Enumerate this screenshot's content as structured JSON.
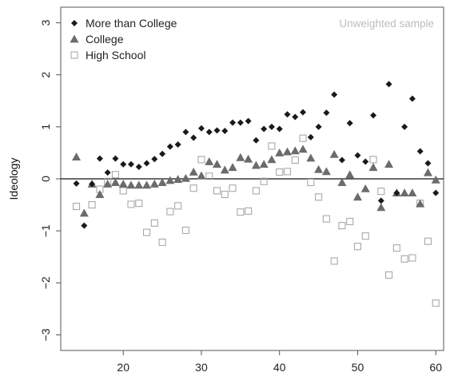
{
  "chart_data": {
    "type": "scatter",
    "ylabel": "Ideology",
    "xlabel": "",
    "xlim": [
      12,
      61
    ],
    "ylim": [
      -3.3,
      3.3
    ],
    "xticks": [
      20,
      30,
      40,
      50,
      60
    ],
    "yticks": [
      -3,
      -2,
      -1,
      0,
      1,
      2,
      3
    ],
    "reference_line_y": 0,
    "annotation": "Unweighted sample",
    "legend_position": "top-left",
    "series": [
      {
        "name": "More than College",
        "marker": "diamond",
        "color": "#1a1a1a",
        "points": [
          [
            14,
            -0.09
          ],
          [
            15,
            -0.9
          ],
          [
            16,
            -0.1
          ],
          [
            17,
            0.39
          ],
          [
            18,
            0.12
          ],
          [
            19,
            0.39
          ],
          [
            20,
            0.28
          ],
          [
            21,
            0.28
          ],
          [
            22,
            0.23
          ],
          [
            23,
            0.3
          ],
          [
            24,
            0.38
          ],
          [
            25,
            0.48
          ],
          [
            26,
            0.62
          ],
          [
            27,
            0.66
          ],
          [
            28,
            0.9
          ],
          [
            29,
            0.79
          ],
          [
            30,
            0.97
          ],
          [
            31,
            0.9
          ],
          [
            32,
            0.93
          ],
          [
            33,
            0.92
          ],
          [
            34,
            1.08
          ],
          [
            35,
            1.08
          ],
          [
            36,
            1.11
          ],
          [
            37,
            0.74
          ],
          [
            38,
            0.96
          ],
          [
            39,
            1.0
          ],
          [
            40,
            0.96
          ],
          [
            41,
            1.24
          ],
          [
            42,
            1.19
          ],
          [
            43,
            1.28
          ],
          [
            44,
            0.8
          ],
          [
            45,
            1.0
          ],
          [
            46,
            1.27
          ],
          [
            47,
            1.62
          ],
          [
            48,
            0.36
          ],
          [
            49,
            1.07
          ],
          [
            50,
            0.45
          ],
          [
            51,
            0.33
          ],
          [
            52,
            1.22
          ],
          [
            53,
            -0.42
          ],
          [
            54,
            1.82
          ],
          [
            55,
            -0.27
          ],
          [
            56,
            1.0
          ],
          [
            57,
            1.54
          ],
          [
            58,
            0.53
          ],
          [
            59,
            0.3
          ],
          [
            60,
            -0.27
          ]
        ]
      },
      {
        "name": "College",
        "marker": "triangle",
        "color": "#6b6b6b",
        "points": [
          [
            14,
            0.42
          ],
          [
            15,
            -0.66
          ],
          [
            16,
            -0.1
          ],
          [
            17,
            -0.3
          ],
          [
            18,
            -0.1
          ],
          [
            19,
            -0.07
          ],
          [
            20,
            -0.1
          ],
          [
            21,
            -0.12
          ],
          [
            22,
            -0.12
          ],
          [
            23,
            -0.12
          ],
          [
            24,
            -0.1
          ],
          [
            25,
            -0.07
          ],
          [
            26,
            -0.03
          ],
          [
            27,
            -0.01
          ],
          [
            28,
            0.01
          ],
          [
            29,
            0.13
          ],
          [
            30,
            0.06
          ],
          [
            31,
            0.33
          ],
          [
            32,
            0.28
          ],
          [
            33,
            0.17
          ],
          [
            34,
            0.22
          ],
          [
            35,
            0.41
          ],
          [
            36,
            0.38
          ],
          [
            37,
            0.26
          ],
          [
            38,
            0.28
          ],
          [
            39,
            0.37
          ],
          [
            40,
            0.5
          ],
          [
            41,
            0.52
          ],
          [
            42,
            0.54
          ],
          [
            43,
            0.57
          ],
          [
            44,
            0.4
          ],
          [
            45,
            0.18
          ],
          [
            46,
            0.14
          ],
          [
            47,
            0.47
          ],
          [
            48,
            -0.07
          ],
          [
            49,
            0.08
          ],
          [
            50,
            -0.35
          ],
          [
            51,
            -0.19
          ],
          [
            52,
            0.22
          ],
          [
            53,
            -0.55
          ],
          [
            54,
            0.28
          ],
          [
            55,
            -0.27
          ],
          [
            56,
            -0.27
          ],
          [
            57,
            -0.27
          ],
          [
            58,
            -0.48
          ],
          [
            59,
            0.12
          ],
          [
            60,
            -0.02
          ]
        ]
      },
      {
        "name": "High School",
        "marker": "square-open",
        "color": "#a9a9a9",
        "points": [
          [
            14,
            -0.53
          ],
          [
            16,
            -0.5
          ],
          [
            17,
            -0.2
          ],
          [
            18,
            -0.05
          ],
          [
            19,
            0.08
          ],
          [
            20,
            -0.23
          ],
          [
            21,
            -0.49
          ],
          [
            22,
            -0.47
          ],
          [
            23,
            -1.03
          ],
          [
            24,
            -0.85
          ],
          [
            25,
            -1.22
          ],
          [
            26,
            -0.63
          ],
          [
            27,
            -0.52
          ],
          [
            28,
            -0.99
          ],
          [
            29,
            -0.18
          ],
          [
            30,
            0.37
          ],
          [
            31,
            0.05
          ],
          [
            32,
            -0.23
          ],
          [
            33,
            -0.3
          ],
          [
            34,
            -0.18
          ],
          [
            35,
            -0.64
          ],
          [
            36,
            -0.62
          ],
          [
            37,
            -0.23
          ],
          [
            38,
            -0.05
          ],
          [
            39,
            0.63
          ],
          [
            40,
            0.13
          ],
          [
            41,
            0.14
          ],
          [
            42,
            0.36
          ],
          [
            43,
            0.78
          ],
          [
            44,
            -0.07
          ],
          [
            45,
            -0.35
          ],
          [
            46,
            -0.77
          ],
          [
            47,
            -1.58
          ],
          [
            48,
            -0.9
          ],
          [
            49,
            -0.82
          ],
          [
            50,
            -1.3
          ],
          [
            51,
            -1.1
          ],
          [
            52,
            0.37
          ],
          [
            53,
            -0.24
          ],
          [
            54,
            -1.85
          ],
          [
            55,
            -1.33
          ],
          [
            56,
            -1.54
          ],
          [
            57,
            -1.52
          ],
          [
            58,
            -0.47
          ],
          [
            59,
            -1.2
          ],
          [
            60,
            -2.39
          ]
        ]
      }
    ]
  }
}
